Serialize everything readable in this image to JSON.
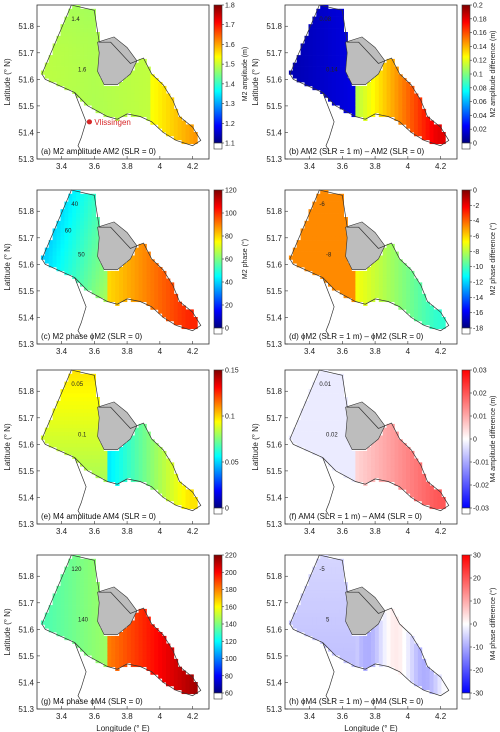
{
  "chart_data": [
    {
      "type": "heatmap",
      "caption": "(a) M2 amplitude AM2 (SLR = 0)",
      "colorbar_label": "M2 amplitude (m)",
      "colorbar_ticks": [
        "1.1",
        "1.2",
        "1.3",
        "1.4",
        "1.5",
        "1.6",
        "1.7",
        "1.8"
      ],
      "clim": [
        1.1,
        1.8
      ],
      "colormap": "jet",
      "field": "m2amp",
      "contours": [
        "1.4",
        "1.6"
      ],
      "ylabel": "Latitude (° N)",
      "xlabel": "",
      "marker": {
        "label": "Vlissingen",
        "lon": 3.57,
        "lat": 51.44
      }
    },
    {
      "type": "heatmap",
      "caption": "(b) AM2 (SLR = 1 m) – AM2 (SLR = 0)",
      "colorbar_label": "M2 amplitude difference (m)",
      "colorbar_ticks": [
        "0",
        "0.02",
        "0.04",
        "0.06",
        "0.08",
        "0.1",
        "0.12",
        "0.14",
        "0.16",
        "0.18",
        "0.2"
      ],
      "clim": [
        0,
        0.2
      ],
      "colormap": "jet",
      "field": "m2dA",
      "contours": [
        "0.08",
        "0.14"
      ],
      "ylabel": "Latitude (° N)",
      "xlabel": ""
    },
    {
      "type": "heatmap",
      "caption": "(c) M2 phase ϕM2 (SLR = 0)",
      "colorbar_label": "M2 phase (°)",
      "colorbar_ticks": [
        "0",
        "20",
        "40",
        "60",
        "80",
        "100",
        "120"
      ],
      "clim": [
        0,
        120
      ],
      "colormap": "jet",
      "field": "m2ph",
      "contours": [
        "40",
        "50",
        "60"
      ],
      "ylabel": "Latitude (° N)",
      "xlabel": ""
    },
    {
      "type": "heatmap",
      "caption": "(d) ϕM2 (SLR = 1 m) – ϕM2 (SLR = 0)",
      "colorbar_label": "M2 phase difference (°)",
      "colorbar_ticks": [
        "-18",
        "-16",
        "-14",
        "-12",
        "-10",
        "-8",
        "-6",
        "-4",
        "-2",
        "0"
      ],
      "clim": [
        -18,
        0
      ],
      "colormap": "jet",
      "field": "m2dP",
      "contours": [
        "-6",
        "-8"
      ],
      "ylabel": "",
      "xlabel": ""
    },
    {
      "type": "heatmap",
      "caption": "(e) M4 amplitude AM4 (SLR = 0)",
      "colorbar_label": "",
      "colorbar_ticks": [
        "0",
        "0.05",
        "0.1",
        "0.15"
      ],
      "clim": [
        0,
        0.15
      ],
      "colormap": "jet",
      "field": "m4amp",
      "contours": [
        "0.05",
        "0.1"
      ],
      "ylabel": "Latitude (° N)",
      "xlabel": ""
    },
    {
      "type": "heatmap",
      "caption": "(f) AM4 (SLR = 1 m) – AM4 (SLR = 0)",
      "colorbar_label": "M4 amplitude difference (m)",
      "colorbar_ticks": [
        "-0.03",
        "-0.02",
        "-0.01",
        "0",
        "0.01",
        "0.02",
        "0.03"
      ],
      "clim": [
        -0.03,
        0.03
      ],
      "colormap": "bwr",
      "field": "m4dA",
      "contours": [
        "0.01",
        "0.02"
      ],
      "ylabel": "Latitude (° N)",
      "xlabel": ""
    },
    {
      "type": "heatmap",
      "caption": "(g) M4 phase ϕM4 (SLR = 0)",
      "colorbar_label": "",
      "colorbar_ticks": [
        "60",
        "80",
        "100",
        "120",
        "140",
        "160",
        "180",
        "200",
        "220"
      ],
      "clim": [
        60,
        220
      ],
      "colormap": "jet",
      "field": "m4ph",
      "contours": [
        "120",
        "140"
      ],
      "ylabel": "Latitude (° N)",
      "xlabel": "Longitude (° E)"
    },
    {
      "type": "heatmap",
      "caption": "(h) ϕM4 (SLR = 1 m) – ϕM4 (SLR = 0)",
      "colorbar_label": "M4 phase difference (°)",
      "colorbar_ticks": [
        "-30",
        "-20",
        "-10",
        "0",
        "10",
        "20",
        "30"
      ],
      "clim": [
        -30,
        30
      ],
      "colormap": "bwr",
      "field": "m4dP",
      "contours": [
        "-5",
        "5"
      ],
      "ylabel": "",
      "xlabel": "Longitude (° E)"
    }
  ],
  "axes": {
    "xticks": [
      "3.4",
      "3.6",
      "3.8",
      "4",
      "4.2"
    ],
    "yticks": [
      "51.3",
      "51.4",
      "51.5",
      "51.6",
      "51.7",
      "51.8"
    ],
    "xlim": [
      3.25,
      4.3
    ],
    "ylim": [
      51.3,
      51.88
    ]
  },
  "colors": {
    "marker": "#d62728",
    "coast": "#333333",
    "land": "#bdbdbd"
  }
}
